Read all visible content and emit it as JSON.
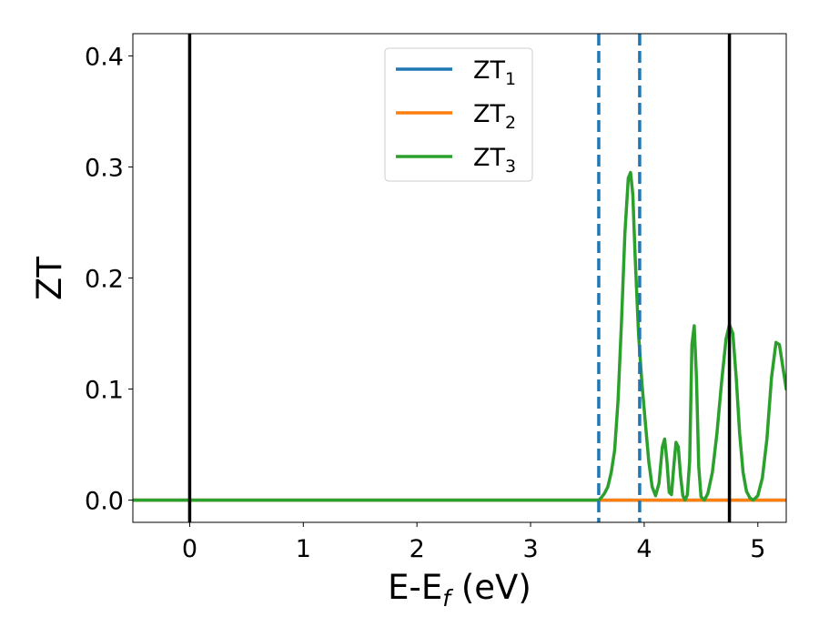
{
  "chart_data": {
    "type": "line",
    "xlabel": "E-E",
    "xlabel_sub": "f",
    "xlabel_unit": " (eV)",
    "ylabel": "ZT",
    "xlim": [
      -0.5,
      5.25
    ],
    "ylim": [
      -0.02,
      0.42
    ],
    "xticks": [
      0,
      1,
      2,
      3,
      4,
      5
    ],
    "xtick_labels": [
      "0",
      "1",
      "2",
      "3",
      "4",
      "5"
    ],
    "yticks": [
      0.0,
      0.1,
      0.2,
      0.3,
      0.4
    ],
    "ytick_labels": [
      "0.0",
      "0.1",
      "0.2",
      "0.3",
      "0.4"
    ],
    "grid": false,
    "legend_position": "top-center",
    "series": [
      {
        "name": "ZT",
        "sub": "1",
        "color": "#1f77b4",
        "x": [
          -0.5,
          3.6,
          5.25
        ],
        "y": [
          0.0,
          0.0,
          0.0
        ]
      },
      {
        "name": "ZT",
        "sub": "2",
        "color": "#ff7f0e",
        "x": [
          -0.5,
          3.6,
          5.25
        ],
        "y": [
          0.0,
          0.0,
          0.0
        ]
      },
      {
        "name": "ZT",
        "sub": "3",
        "color": "#2ca02c",
        "x": [
          -0.5,
          3.5,
          3.6,
          3.62,
          3.65,
          3.68,
          3.71,
          3.74,
          3.77,
          3.8,
          3.83,
          3.86,
          3.88,
          3.9,
          3.92,
          3.95,
          3.98,
          4.01,
          4.04,
          4.07,
          4.1,
          4.13,
          4.16,
          4.18,
          4.2,
          4.22,
          4.24,
          4.26,
          4.28,
          4.3,
          4.32,
          4.34,
          4.36,
          4.38,
          4.4,
          4.42,
          4.44,
          4.46,
          4.48,
          4.5,
          4.53,
          4.56,
          4.6,
          4.64,
          4.68,
          4.72,
          4.75,
          4.78,
          4.81,
          4.84,
          4.87,
          4.9,
          4.93,
          4.96,
          5.0,
          5.04,
          5.08,
          5.12,
          5.16,
          5.19,
          5.22,
          5.25
        ],
        "y": [
          0.0,
          0.0,
          0.0,
          0.002,
          0.006,
          0.012,
          0.025,
          0.045,
          0.09,
          0.16,
          0.24,
          0.29,
          0.295,
          0.275,
          0.22,
          0.15,
          0.105,
          0.07,
          0.035,
          0.012,
          0.004,
          0.015,
          0.048,
          0.055,
          0.035,
          0.007,
          0.005,
          0.03,
          0.052,
          0.048,
          0.022,
          0.004,
          0.0,
          0.005,
          0.035,
          0.14,
          0.157,
          0.11,
          0.03,
          0.003,
          0.0,
          0.006,
          0.025,
          0.06,
          0.105,
          0.145,
          0.158,
          0.15,
          0.11,
          0.06,
          0.025,
          0.008,
          0.002,
          0.0,
          0.004,
          0.02,
          0.055,
          0.11,
          0.142,
          0.14,
          0.12,
          0.1
        ]
      }
    ],
    "vlines": [
      {
        "x": 0.0,
        "color": "#000000",
        "style": "solid"
      },
      {
        "x": 3.6,
        "color": "#1f77b4",
        "style": "dashed"
      },
      {
        "x": 3.96,
        "color": "#1f77b4",
        "style": "dashed"
      },
      {
        "x": 4.75,
        "color": "#000000",
        "style": "solid"
      }
    ]
  }
}
